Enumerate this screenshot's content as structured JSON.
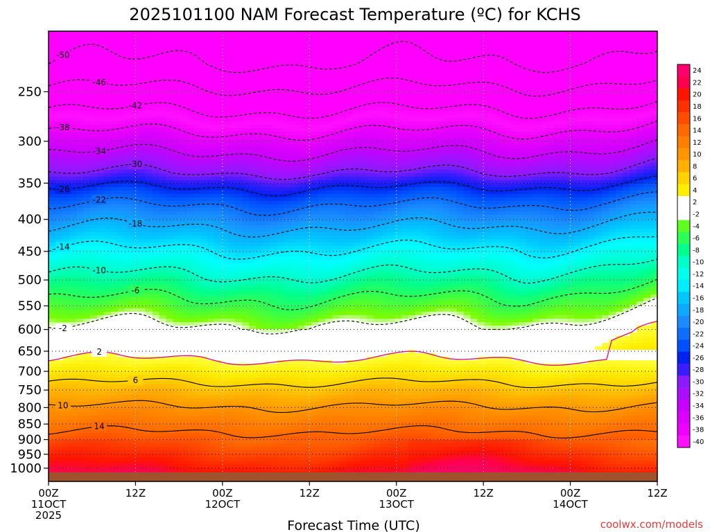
{
  "chart_data": {
    "type": "heatmap",
    "title": "2025101100 NAM Forecast Temperature (ºC) for KCHS",
    "xlabel": "Forecast Time (UTC)",
    "credit": "coolwx.com/models",
    "y_axis": {
      "scale": "log-pressure",
      "inverted": true,
      "range_hpa": [
        200,
        1050
      ],
      "ticks": [
        250,
        300,
        350,
        400,
        450,
        500,
        550,
        600,
        650,
        700,
        750,
        800,
        850,
        900,
        950,
        1000
      ],
      "tick_labels": [
        "250",
        "300",
        "350",
        "400",
        "450",
        "500",
        "550",
        "600",
        "650",
        "700",
        "750",
        "800",
        "850",
        "900",
        "950",
        "1000"
      ]
    },
    "x_axis": {
      "range_hours": [
        0,
        84
      ],
      "ticks": [
        {
          "hour": 0,
          "line1": "00Z",
          "line2": "11OCT",
          "line3": "2025"
        },
        {
          "hour": 12,
          "line1": "12Z",
          "line2": "",
          "line3": ""
        },
        {
          "hour": 24,
          "line1": "00Z",
          "line2": "12OCT",
          "line3": ""
        },
        {
          "hour": 36,
          "line1": "12Z",
          "line2": "",
          "line3": ""
        },
        {
          "hour": 48,
          "line1": "00Z",
          "line2": "13OCT",
          "line3": ""
        },
        {
          "hour": 60,
          "line1": "12Z",
          "line2": "",
          "line3": ""
        },
        {
          "hour": 72,
          "line1": "00Z",
          "line2": "14OCT",
          "line3": ""
        },
        {
          "hour": 84,
          "line1": "12Z",
          "line2": "",
          "line3": ""
        }
      ]
    },
    "colorbar": {
      "labels": [
        "24",
        "22",
        "20",
        "18",
        "16",
        "14",
        "12",
        "10",
        "8",
        "6",
        "4",
        "2",
        "-2",
        "-4",
        "-6",
        "-8",
        "-10",
        "-12",
        "-14",
        "-16",
        "-18",
        "-20",
        "-22",
        "-24",
        "-26",
        "-28",
        "-30",
        "-32",
        "-34",
        "-36",
        "-38",
        "-40"
      ]
    },
    "isotherms_at_hour0": [
      {
        "label": "-50",
        "p": 225
      },
      {
        "label": "-46",
        "p": 246
      },
      {
        "label": "-42",
        "p": 268
      },
      {
        "label": "-38",
        "p": 290
      },
      {
        "label": "-34",
        "p": 313
      },
      {
        "label": "-30",
        "p": 337
      },
      {
        "label": "-26",
        "p": 356
      },
      {
        "label": "-22",
        "p": 380
      },
      {
        "label": "-18",
        "p": 412
      },
      {
        "label": "-14",
        "p": 447
      },
      {
        "label": "-10",
        "p": 490
      },
      {
        "label": "-6",
        "p": 535
      },
      {
        "label": "-2",
        "p": 590
      },
      {
        "label": "2",
        "p": 670
      },
      {
        "label": "6",
        "p": 730
      },
      {
        "label": "10",
        "p": 795
      },
      {
        "label": "14",
        "p": 875
      }
    ],
    "surface_pressure_hpa": 1015
  }
}
